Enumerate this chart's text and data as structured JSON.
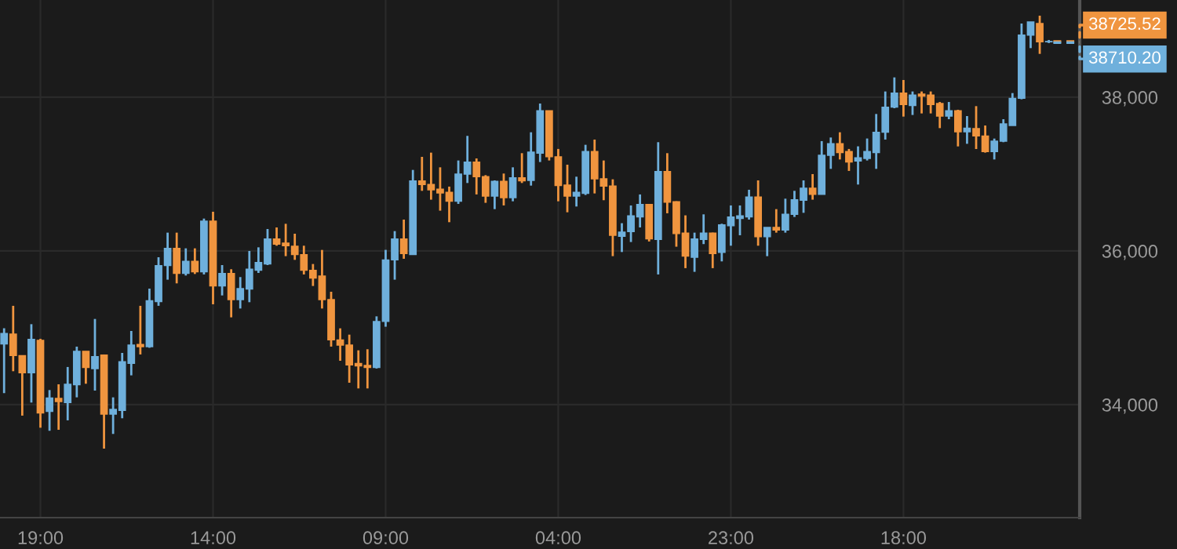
{
  "chart_data": {
    "type": "candlestick",
    "categories": [
      null,
      null,
      null,
      null,
      "19:00",
      null,
      null,
      null,
      null,
      null,
      null,
      null,
      null,
      null,
      null,
      null,
      null,
      null,
      null,
      null,
      null,
      null,
      null,
      "14:00",
      null,
      null,
      null,
      null,
      null,
      null,
      null,
      null,
      null,
      null,
      null,
      null,
      null,
      null,
      null,
      null,
      null,
      null,
      "09:00",
      null,
      null,
      null,
      null,
      null,
      null,
      null,
      null,
      null,
      null,
      null,
      null,
      null,
      null,
      null,
      null,
      null,
      null,
      "04:00",
      null,
      null,
      null,
      null,
      null,
      null,
      null,
      null,
      null,
      null,
      null,
      null,
      null,
      null,
      null,
      null,
      null,
      null,
      "23:00",
      null,
      null,
      null,
      null,
      null,
      null,
      null,
      null,
      null,
      null,
      null,
      null,
      null,
      null,
      null,
      null,
      null,
      null,
      "18:00",
      null,
      null,
      null,
      null,
      null,
      null,
      null,
      null,
      null,
      null,
      null,
      null,
      null,
      null,
      null,
      null
    ],
    "ohlc": [
      [
        34790,
        34994,
        34150,
        34926
      ],
      [
        34918,
        35286,
        34435,
        34639
      ],
      [
        34639,
        34639,
        33857,
        34415
      ],
      [
        34415,
        35047,
        34027,
        34850
      ],
      [
        34837,
        34857,
        33700,
        33891
      ],
      [
        33911,
        34190,
        33660,
        34088
      ],
      [
        34081,
        34265,
        33673,
        34040
      ],
      [
        34027,
        34490,
        33796,
        34265
      ],
      [
        34258,
        34755,
        34095,
        34694
      ],
      [
        34694,
        34694,
        34272,
        34483
      ],
      [
        34469,
        35115,
        34183,
        34626
      ],
      [
        34646,
        34653,
        33428,
        33877
      ],
      [
        33877,
        34095,
        33619,
        33938
      ],
      [
        33925,
        34673,
        33823,
        34558
      ],
      [
        34537,
        34959,
        34381,
        34775
      ],
      [
        34782,
        35286,
        34653,
        34755
      ],
      [
        34755,
        35510,
        34740,
        35353
      ],
      [
        35340,
        35918,
        35286,
        35809
      ],
      [
        35809,
        36238,
        35626,
        36034
      ],
      [
        36034,
        36238,
        35578,
        35707
      ],
      [
        35707,
        36034,
        35680,
        35864
      ],
      [
        35864,
        36034,
        35700,
        35728
      ],
      [
        35728,
        36421,
        35694,
        36387
      ],
      [
        36387,
        36510,
        35306,
        35544
      ],
      [
        35544,
        35816,
        35421,
        35707
      ],
      [
        35707,
        35762,
        35136,
        35367
      ],
      [
        35367,
        35660,
        35251,
        35510
      ],
      [
        35503,
        36000,
        35333,
        35762
      ],
      [
        35748,
        36047,
        35714,
        35850
      ],
      [
        35830,
        36285,
        35816,
        36156
      ],
      [
        36156,
        36306,
        36068,
        36088
      ],
      [
        36102,
        36353,
        35932,
        36068
      ],
      [
        36061,
        36224,
        35884,
        35952
      ],
      [
        35952,
        36068,
        35694,
        35748
      ],
      [
        35748,
        35830,
        35544,
        35646
      ],
      [
        35673,
        36013,
        35251,
        35367
      ],
      [
        35367,
        35469,
        34755,
        34843
      ],
      [
        34843,
        34993,
        34571,
        34775
      ],
      [
        34775,
        34911,
        34285,
        34517
      ],
      [
        34537,
        34707,
        34211,
        34503
      ],
      [
        34510,
        34721,
        34211,
        34483
      ],
      [
        34483,
        35149,
        34470,
        35081
      ],
      [
        35082,
        36014,
        35014,
        35884
      ],
      [
        35884,
        36258,
        35626,
        36156
      ],
      [
        36156,
        36408,
        35898,
        35966
      ],
      [
        35952,
        37054,
        35952,
        36912
      ],
      [
        36912,
        37224,
        36782,
        36864
      ],
      [
        36864,
        37279,
        36667,
        36796
      ],
      [
        36803,
        37088,
        36524,
        36755
      ],
      [
        36762,
        36837,
        36374,
        36646
      ],
      [
        36646,
        37177,
        36612,
        37000
      ],
      [
        37000,
        37497,
        36884,
        37157
      ],
      [
        37157,
        37204,
        36735,
        36966
      ],
      [
        36966,
        36986,
        36626,
        36714
      ],
      [
        36714,
        36918,
        36544,
        36905
      ],
      [
        36905,
        37007,
        36592,
        36694
      ],
      [
        36694,
        37088,
        36646,
        36952
      ],
      [
        36952,
        37272,
        36884,
        36912
      ],
      [
        36918,
        37544,
        36850,
        37286
      ],
      [
        37272,
        37918,
        37157,
        37823
      ],
      [
        37823,
        37823,
        37177,
        37225
      ],
      [
        37225,
        37327,
        36646,
        36850
      ],
      [
        36857,
        37122,
        36503,
        36714
      ],
      [
        36714,
        36966,
        36578,
        36762
      ],
      [
        36748,
        37381,
        36728,
        37293
      ],
      [
        37293,
        37449,
        36748,
        36939
      ],
      [
        36939,
        37177,
        36660,
        36844
      ],
      [
        36844,
        36932,
        35932,
        36204
      ],
      [
        36191,
        36361,
        35986,
        36245
      ],
      [
        36252,
        36592,
        36116,
        36456
      ],
      [
        36442,
        36735,
        36306,
        36606
      ],
      [
        36606,
        36606,
        36123,
        36157
      ],
      [
        36150,
        37415,
        35694,
        37034
      ],
      [
        37034,
        37272,
        36490,
        36633
      ],
      [
        36640,
        36646,
        36055,
        36225
      ],
      [
        36231,
        36463,
        35776,
        35932
      ],
      [
        35918,
        36238,
        35728,
        36157
      ],
      [
        36150,
        36476,
        36089,
        36231
      ],
      [
        36231,
        36238,
        35776,
        35966
      ],
      [
        35980,
        36354,
        35864,
        36340
      ],
      [
        36327,
        36592,
        36068,
        36442
      ],
      [
        36422,
        36592,
        36204,
        36456
      ],
      [
        36442,
        36796,
        36408,
        36701
      ],
      [
        36701,
        36918,
        36068,
        36184
      ],
      [
        36184,
        36306,
        35932,
        36306
      ],
      [
        36306,
        36544,
        36238,
        36272
      ],
      [
        36272,
        36680,
        36238,
        36476
      ],
      [
        36476,
        36782,
        36442,
        36667
      ],
      [
        36660,
        36918,
        36496,
        36816
      ],
      [
        36816,
        37000,
        36667,
        36735
      ],
      [
        36735,
        37429,
        36735,
        37245
      ],
      [
        37245,
        37476,
        37068,
        37395
      ],
      [
        37395,
        37544,
        37190,
        37279
      ],
      [
        37293,
        37327,
        37041,
        37156
      ],
      [
        37170,
        37361,
        36864,
        37211
      ],
      [
        37204,
        37463,
        37177,
        37293
      ],
      [
        37279,
        37782,
        37068,
        37544
      ],
      [
        37544,
        38075,
        37449,
        37871
      ],
      [
        37871,
        38258,
        37857,
        38054
      ],
      [
        38054,
        38224,
        37748,
        37905
      ],
      [
        37891,
        38075,
        37769,
        38027
      ],
      [
        38041,
        38075,
        37789,
        38014
      ],
      [
        38027,
        38075,
        37789,
        37905
      ],
      [
        37918,
        37938,
        37598,
        37755
      ],
      [
        37755,
        37938,
        37714,
        37823
      ],
      [
        37823,
        37837,
        37360,
        37551
      ],
      [
        37551,
        37755,
        37394,
        37598
      ],
      [
        37592,
        37884,
        37326,
        37496
      ],
      [
        37496,
        37632,
        37279,
        37292
      ],
      [
        37292,
        37462,
        37190,
        37428
      ],
      [
        37428,
        37714,
        37415,
        37653
      ],
      [
        37632,
        38054,
        37632,
        37986
      ],
      [
        37986,
        38959,
        37973,
        38809
      ],
      [
        38809,
        38979,
        38639,
        38979
      ],
      [
        38959,
        39061,
        38564,
        38721
      ],
      [
        38721,
        38745,
        38705,
        38725
      ]
    ],
    "colors": [
      "#6fb0dc",
      "#f0953f",
      "#f0953f",
      "#6fb0dc",
      "#f0953f",
      "#6fb0dc",
      "#f0953f",
      "#6fb0dc",
      "#6fb0dc",
      "#f0953f",
      "#6fb0dc",
      "#f0953f",
      "#6fb0dc",
      "#6fb0dc",
      "#6fb0dc",
      "#f0953f",
      "#6fb0dc",
      "#6fb0dc",
      "#6fb0dc",
      "#f0953f",
      "#6fb0dc",
      "#f0953f",
      "#6fb0dc",
      "#f0953f",
      "#6fb0dc",
      "#f0953f",
      "#6fb0dc",
      "#6fb0dc",
      "#6fb0dc",
      "#6fb0dc",
      "#f0953f",
      "#f0953f",
      "#f0953f",
      "#f0953f",
      "#f0953f",
      "#f0953f",
      "#f0953f",
      "#f0953f",
      "#f0953f",
      "#f0953f",
      "#f0953f",
      "#6fb0dc",
      "#6fb0dc",
      "#6fb0dc",
      "#f0953f",
      "#6fb0dc",
      "#f0953f",
      "#f0953f",
      "#f0953f",
      "#f0953f",
      "#6fb0dc",
      "#6fb0dc",
      "#f0953f",
      "#f0953f",
      "#6fb0dc",
      "#f0953f",
      "#6fb0dc",
      "#f0953f",
      "#6fb0dc",
      "#6fb0dc",
      "#f0953f",
      "#f0953f",
      "#f0953f",
      "#6fb0dc",
      "#6fb0dc",
      "#f0953f",
      "#f0953f",
      "#f0953f",
      "#6fb0dc",
      "#6fb0dc",
      "#6fb0dc",
      "#f0953f",
      "#6fb0dc",
      "#f0953f",
      "#f0953f",
      "#f0953f",
      "#6fb0dc",
      "#6fb0dc",
      "#f0953f",
      "#6fb0dc",
      "#6fb0dc",
      "#6fb0dc",
      "#6fb0dc",
      "#f0953f",
      "#6fb0dc",
      "#f0953f",
      "#6fb0dc",
      "#6fb0dc",
      "#6fb0dc",
      "#f0953f",
      "#6fb0dc",
      "#6fb0dc",
      "#f0953f",
      "#f0953f",
      "#6fb0dc",
      "#6fb0dc",
      "#6fb0dc",
      "#6fb0dc",
      "#6fb0dc",
      "#f0953f",
      "#6fb0dc",
      "#f0953f",
      "#f0953f",
      "#f0953f",
      "#6fb0dc",
      "#f0953f",
      "#6fb0dc",
      "#f0953f",
      "#f0953f",
      "#6fb0dc",
      "#6fb0dc",
      "#6fb0dc",
      "#6fb0dc",
      "#6fb0dc",
      "#f0953f",
      "#6fb0dc"
    ],
    "ylim": [
      32530,
      39265
    ],
    "yticks": [
      {
        "value": 34000,
        "label": "34,000"
      },
      {
        "value": 36000,
        "label": "36,000"
      },
      {
        "value": 38000,
        "label": "38,000"
      }
    ],
    "ref_lines": [
      {
        "axis": "y",
        "value": 38725.52,
        "label": "38725.52",
        "color": "#f0953f",
        "line_style": "dashed"
      },
      {
        "axis": "y",
        "value": 38710.2,
        "label": "38710.20",
        "color": "#6fb0dc",
        "line_style": "dashed"
      }
    ],
    "grid": true
  }
}
